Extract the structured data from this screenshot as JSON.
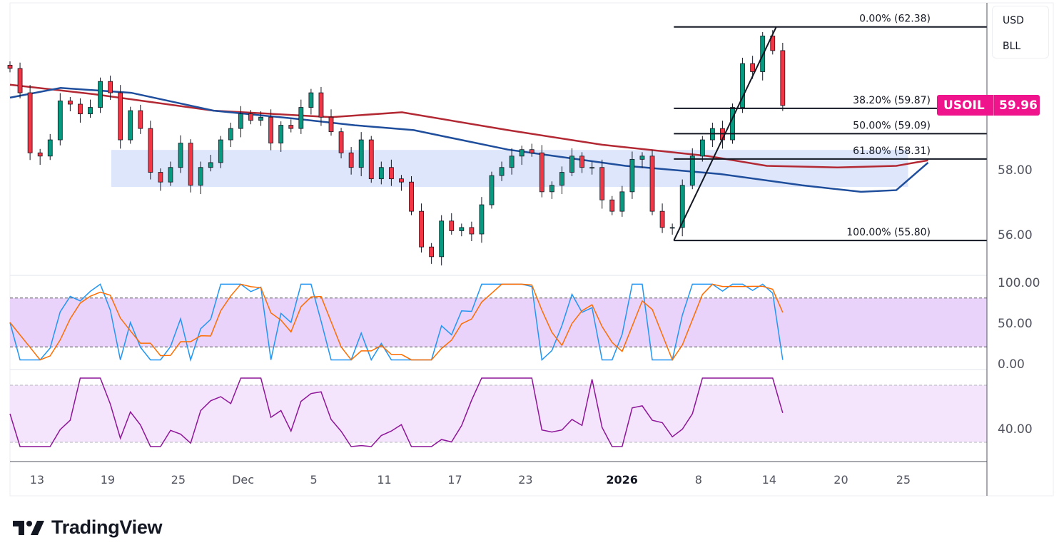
{
  "chart_data": {
    "type": "candlestick",
    "symbol": "USOIL",
    "currency": "USD",
    "unit": "BLL",
    "last_price": "59.96",
    "last_price_value": 59.96,
    "price_axis": {
      "ticks": [
        "58.00",
        "56.00"
      ],
      "tick_values": [
        58,
        56
      ],
      "ylim": [
        55.0,
        63.3
      ]
    },
    "x_axis": {
      "labels": [
        "13",
        "19",
        "25",
        "Dec",
        "5",
        "11",
        "17",
        "23",
        "2026",
        "8",
        "14",
        "20",
        "25"
      ],
      "label_days": [
        0,
        6,
        12,
        17.5,
        23.5,
        29.5,
        35.5,
        41.5,
        49.7,
        56.2,
        62.2,
        68.3,
        73.6
      ],
      "bold_labels": [
        "2026"
      ],
      "xlim": [
        -2.3,
        80.7
      ]
    },
    "candles": {
      "start_day": -2.3,
      "end_day": 63.35,
      "closes": [
        61.1,
        60.35,
        58.5,
        58.4,
        58.9,
        60.1,
        60.0,
        59.7,
        59.9,
        60.7,
        60.35,
        58.9,
        59.8,
        59.25,
        57.9,
        57.6,
        58.05,
        58.8,
        57.5,
        58.05,
        58.2,
        58.9,
        59.25,
        59.7,
        59.5,
        59.6,
        58.8,
        59.35,
        59.25,
        59.9,
        60.35,
        59.6,
        59.15,
        58.5,
        58.05,
        58.9,
        57.7,
        58.05,
        57.7,
        57.6,
        56.7,
        55.6,
        55.3,
        56.4,
        56.1,
        56.2,
        56.0,
        56.9,
        57.8,
        58.05,
        58.4,
        58.6,
        58.5,
        57.3,
        57.5,
        57.9,
        58.4,
        58.05,
        58.05,
        57.05,
        56.7,
        57.3,
        58.3,
        58.4,
        56.7,
        56.2,
        56.2,
        57.5,
        58.4,
        58.9,
        59.25,
        58.9,
        59.9,
        61.25,
        61.0,
        62.1,
        61.65,
        59.96
      ]
    },
    "moving_averages": [
      {
        "name": "MA slow",
        "color": "#b22833",
        "points": [
          [
            -2.3,
            60.6
          ],
          [
            5,
            60.3
          ],
          [
            15,
            59.8
          ],
          [
            25,
            59.6
          ],
          [
            31,
            59.75
          ],
          [
            40,
            59.2
          ],
          [
            48,
            58.75
          ],
          [
            57,
            58.4
          ],
          [
            62,
            58.1
          ],
          [
            68,
            58.05
          ],
          [
            73,
            58.1
          ],
          [
            75.7,
            58.27
          ]
        ]
      },
      {
        "name": "MA fast",
        "color": "#1f4e9c",
        "points": [
          [
            -2.3,
            60.2
          ],
          [
            2,
            60.5
          ],
          [
            8,
            60.35
          ],
          [
            15,
            59.8
          ],
          [
            22,
            59.55
          ],
          [
            27,
            59.35
          ],
          [
            32,
            59.2
          ],
          [
            40,
            58.6
          ],
          [
            50,
            58.1
          ],
          [
            58,
            57.85
          ],
          [
            65,
            57.5
          ],
          [
            70,
            57.3
          ],
          [
            73,
            57.35
          ],
          [
            75.7,
            58.2
          ]
        ]
      }
    ],
    "zone": {
      "from_day": 6.3,
      "to_day": 74,
      "price_high": 58.59,
      "price_low": 57.45,
      "color": "#dde6fb"
    },
    "fibonacci": {
      "start_day": 54.1,
      "levels": [
        {
          "label": "0.00% (62.38)",
          "price": 62.38
        },
        {
          "label": "38.20% (59.87)",
          "price": 59.87
        },
        {
          "label": "50.00% (59.09)",
          "price": 59.09
        },
        {
          "label": "61.80% (58.31)",
          "price": 58.31
        },
        {
          "label": "100.00% (55.80)",
          "price": 55.8
        }
      ],
      "trendline": [
        [
          54.1,
          55.8
        ],
        [
          62.8,
          62.38
        ]
      ]
    },
    "stochastic": {
      "ticks": [
        "100.00",
        "50.00",
        "0.00"
      ],
      "tick_values": [
        100,
        50,
        0
      ],
      "bands": [
        80,
        20
      ],
      "k_color": "#2196f3",
      "d_color": "#ff6d00",
      "band_fill": "#e9d3fb",
      "period": 6
    },
    "rsi": {
      "ticks": [
        "40.00"
      ],
      "tick_values": [
        40
      ],
      "bands": [
        70,
        30
      ],
      "ylim": [
        16,
        82
      ],
      "color": "#8e1599",
      "band_fill": "#f4e5fd",
      "period": 5
    },
    "colors": {
      "up": "#089981",
      "down": "#f23645",
      "price_tag": "#f0148c"
    }
  },
  "branding": {
    "name": "TradingView"
  }
}
